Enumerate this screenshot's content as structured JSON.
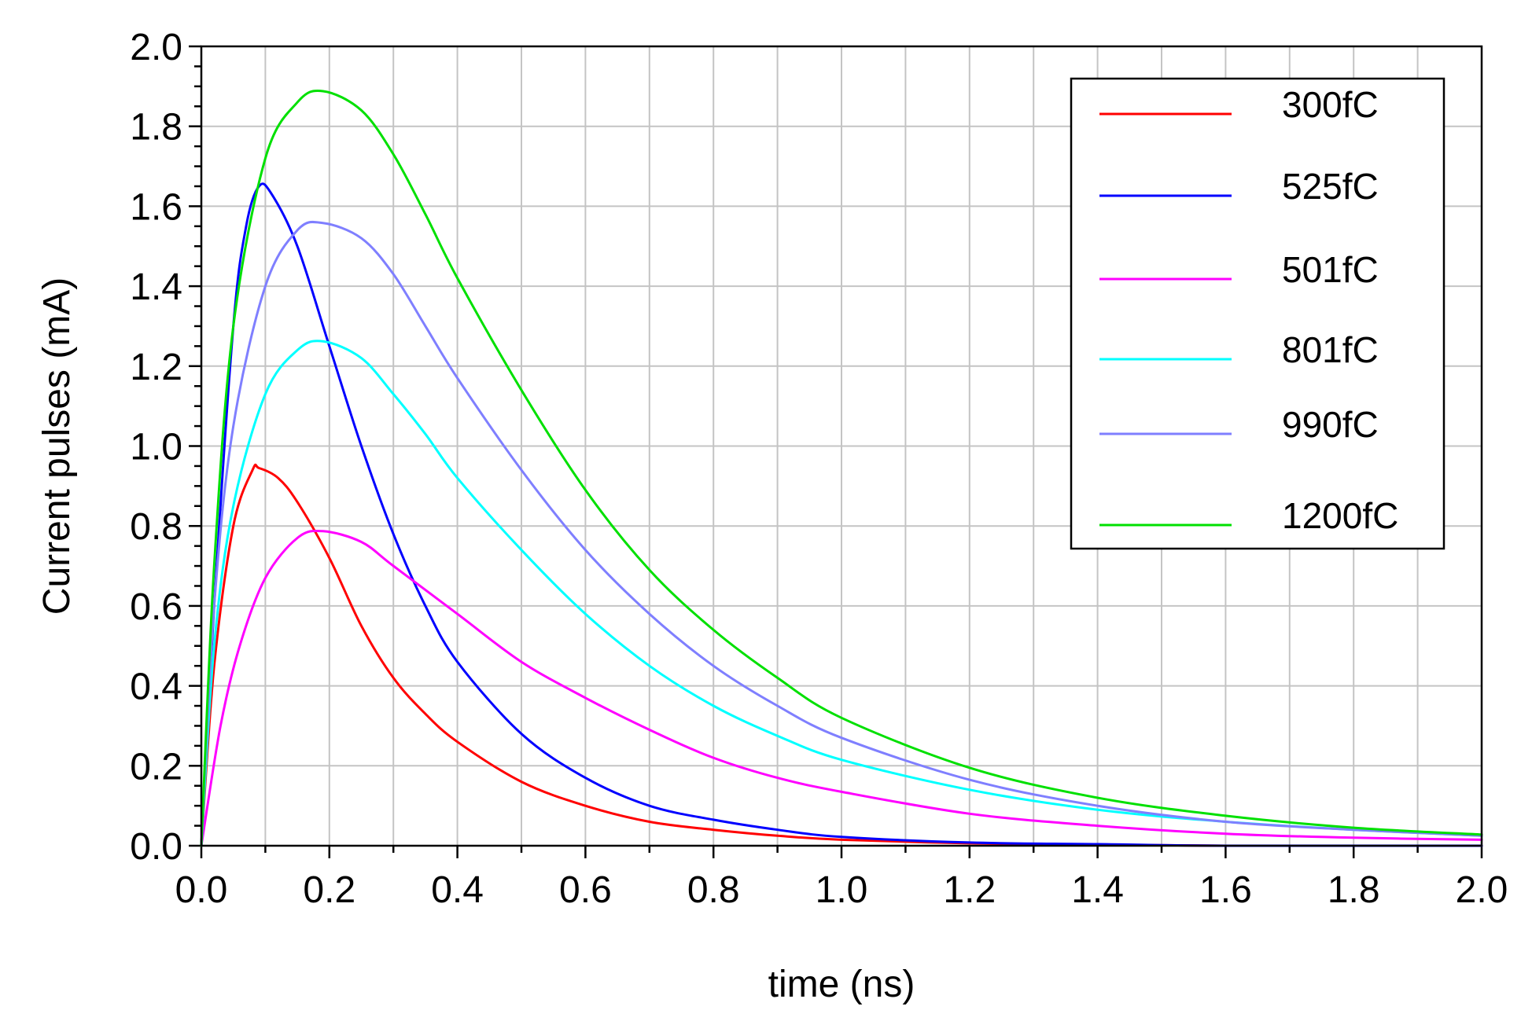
{
  "chart_data": {
    "type": "line",
    "title": "",
    "xlabel": "time (ns)",
    "ylabel": "Current pulses (mA)",
    "xlim": [
      0.0,
      2.0
    ],
    "ylim": [
      0.0,
      2.0
    ],
    "grid": true,
    "legend_position": "top-right",
    "xticks": [
      "0.0",
      "0.2",
      "0.4",
      "0.6",
      "0.8",
      "1.0",
      "1.2",
      "1.4",
      "1.6",
      "1.8",
      "2.0"
    ],
    "yticks": [
      "0.0",
      "0.2",
      "0.4",
      "0.6",
      "0.8",
      "1.0",
      "1.2",
      "1.4",
      "1.6",
      "1.8",
      "2.0"
    ],
    "series": [
      {
        "name": "300fC",
        "color": "#ff0000",
        "x": [
          0.0,
          0.02,
          0.05,
          0.08,
          0.09,
          0.12,
          0.15,
          0.2,
          0.25,
          0.3,
          0.35,
          0.4,
          0.5,
          0.6,
          0.7,
          0.8,
          0.9,
          1.0,
          1.2,
          1.4,
          1.6,
          2.0
        ],
        "y": [
          0.0,
          0.45,
          0.8,
          0.94,
          0.945,
          0.92,
          0.86,
          0.72,
          0.55,
          0.42,
          0.33,
          0.26,
          0.16,
          0.1,
          0.06,
          0.04,
          0.025,
          0.015,
          0.006,
          0.003,
          0.0,
          0.0
        ]
      },
      {
        "name": "525fC",
        "color": "#0000ff",
        "x": [
          0.0,
          0.02,
          0.05,
          0.07,
          0.09,
          0.11,
          0.15,
          0.2,
          0.25,
          0.3,
          0.35,
          0.4,
          0.5,
          0.6,
          0.7,
          0.8,
          0.9,
          1.0,
          1.2,
          1.4,
          1.6,
          2.0
        ],
        "y": [
          0.0,
          0.6,
          1.3,
          1.55,
          1.65,
          1.63,
          1.5,
          1.25,
          1.0,
          0.78,
          0.6,
          0.46,
          0.28,
          0.17,
          0.1,
          0.065,
          0.04,
          0.022,
          0.008,
          0.004,
          0.0,
          0.0
        ]
      },
      {
        "name": "501fC",
        "color": "#ff00ff",
        "x": [
          0.0,
          0.03,
          0.06,
          0.1,
          0.15,
          0.19,
          0.25,
          0.3,
          0.4,
          0.5,
          0.6,
          0.7,
          0.8,
          0.9,
          1.0,
          1.2,
          1.4,
          1.6,
          1.8,
          2.0
        ],
        "y": [
          0.0,
          0.3,
          0.5,
          0.67,
          0.77,
          0.787,
          0.76,
          0.7,
          0.58,
          0.46,
          0.37,
          0.29,
          0.22,
          0.17,
          0.135,
          0.08,
          0.05,
          0.03,
          0.02,
          0.015
        ]
      },
      {
        "name": "801fC",
        "color": "#00ffff",
        "x": [
          0.0,
          0.02,
          0.05,
          0.1,
          0.15,
          0.19,
          0.25,
          0.3,
          0.35,
          0.4,
          0.5,
          0.6,
          0.7,
          0.8,
          0.9,
          1.0,
          1.2,
          1.4,
          1.6,
          1.8,
          2.0
        ],
        "y": [
          0.0,
          0.5,
          0.85,
          1.13,
          1.24,
          1.262,
          1.22,
          1.13,
          1.03,
          0.92,
          0.74,
          0.58,
          0.45,
          0.35,
          0.275,
          0.215,
          0.14,
          0.09,
          0.06,
          0.04,
          0.025
        ]
      },
      {
        "name": "990fC",
        "color": "#7f7fff",
        "x": [
          0.0,
          0.02,
          0.05,
          0.1,
          0.15,
          0.19,
          0.25,
          0.3,
          0.35,
          0.4,
          0.5,
          0.6,
          0.7,
          0.8,
          0.9,
          1.0,
          1.2,
          1.4,
          1.6,
          1.8,
          2.0
        ],
        "y": [
          0.0,
          0.6,
          1.05,
          1.4,
          1.54,
          1.558,
          1.52,
          1.43,
          1.3,
          1.17,
          0.94,
          0.74,
          0.58,
          0.45,
          0.35,
          0.27,
          0.165,
          0.1,
          0.06,
          0.04,
          0.025
        ]
      },
      {
        "name": "1200fC",
        "color": "#00e000",
        "x": [
          0.0,
          0.02,
          0.05,
          0.1,
          0.15,
          0.19,
          0.25,
          0.3,
          0.35,
          0.4,
          0.5,
          0.6,
          0.7,
          0.8,
          0.9,
          1.0,
          1.2,
          1.4,
          1.6,
          1.8,
          2.0
        ],
        "y": [
          0.0,
          0.7,
          1.3,
          1.72,
          1.86,
          1.888,
          1.84,
          1.73,
          1.58,
          1.42,
          1.14,
          0.89,
          0.69,
          0.54,
          0.42,
          0.32,
          0.195,
          0.12,
          0.075,
          0.045,
          0.028
        ]
      }
    ]
  }
}
